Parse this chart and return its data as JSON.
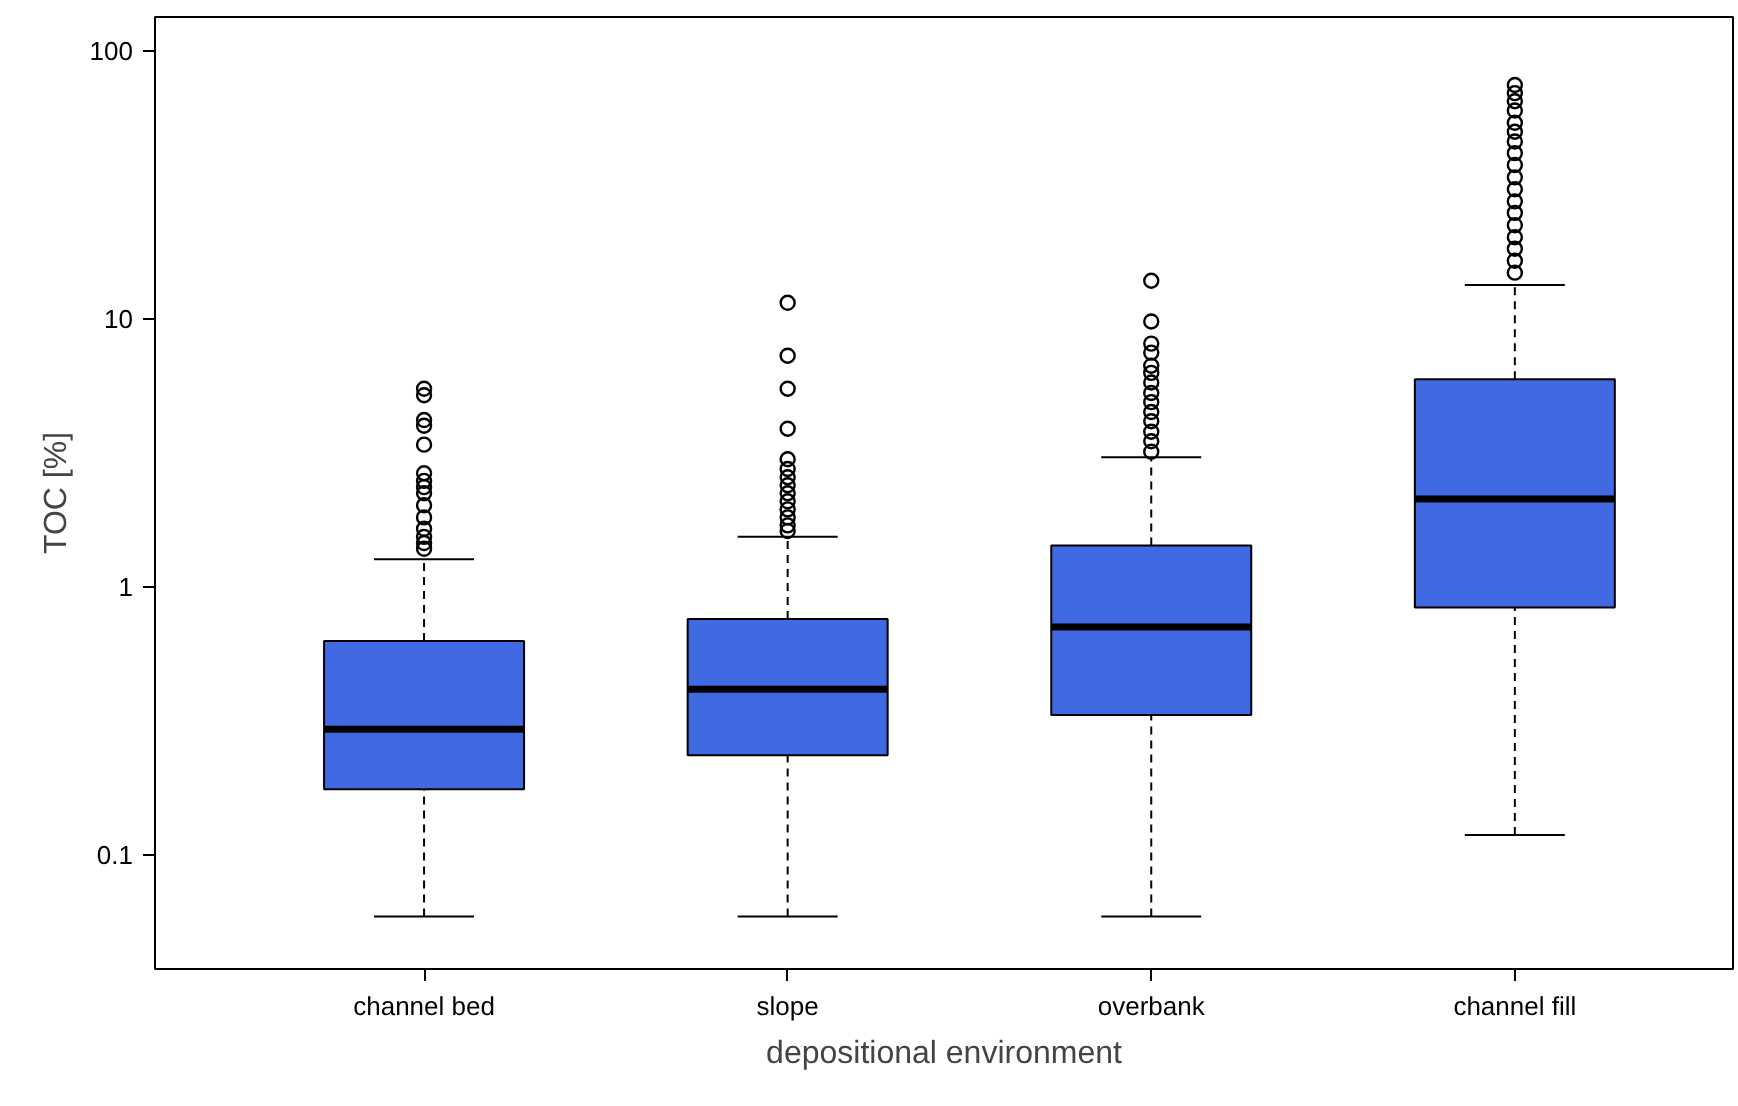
{
  "chart_data": {
    "type": "box",
    "xlabel": "depositional environment",
    "ylabel": "TOC [%]",
    "categories": [
      "channel bed",
      "slope",
      "overbank",
      "channel fill"
    ],
    "color": "#4169e1",
    "log": true,
    "grid": false,
    "ylim": [
      0.0376,
      134
    ],
    "yticks": [
      0.1,
      1,
      10,
      100
    ],
    "boxes": [
      {
        "low": 0.059,
        "q1": 0.176,
        "median": 0.295,
        "q3": 0.63,
        "high": 1.27,
        "outliers": [
          5.5,
          5.2,
          4.2,
          4.0,
          3.4,
          2.66,
          2.49,
          2.36,
          2.24,
          2.02,
          1.82,
          1.65,
          1.54,
          1.46,
          1.39
        ]
      },
      {
        "low": 0.059,
        "q1": 0.236,
        "median": 0.416,
        "q3": 0.76,
        "high": 1.54,
        "outliers": [
          11.5,
          7.3,
          5.5,
          3.9,
          3.0,
          2.76,
          2.57,
          2.4,
          2.24,
          2.09,
          1.95,
          1.82,
          1.7,
          1.62
        ]
      },
      {
        "low": 0.059,
        "q1": 0.333,
        "median": 0.71,
        "q3": 1.43,
        "high": 3.05,
        "outliers": [
          13.9,
          9.8,
          8.1,
          7.5,
          6.7,
          6.3,
          5.8,
          5.3,
          4.9,
          4.5,
          4.16,
          3.8,
          3.5,
          3.2
        ]
      },
      {
        "low": 0.119,
        "q1": 0.84,
        "median": 2.13,
        "q3": 5.97,
        "high": 13.4,
        "outliers": [
          74.7,
          69.7,
          65,
          60,
          54,
          50,
          46,
          41.6,
          37.6,
          33.8,
          30.5,
          27.5,
          24.9,
          22.4,
          20.2,
          18.3,
          16.5,
          14.9
        ]
      }
    ]
  }
}
